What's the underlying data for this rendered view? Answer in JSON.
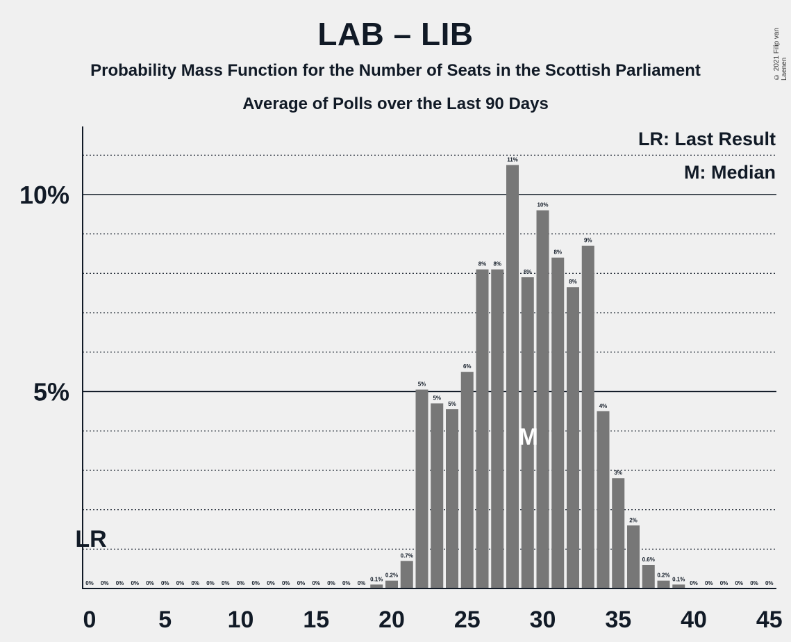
{
  "title": "LAB – LIB",
  "subtitle": "Probability Mass Function for the Number of Seats in the Scottish Parliament",
  "subtitle2": "Average of Polls over the Last 90 Days",
  "copyright": "© 2021 Filip van Laenen",
  "legend": {
    "last_result": "LR: Last Result",
    "median": "M: Median"
  },
  "markers": {
    "last_result_label": "LR",
    "last_result_seat": 0,
    "median_label": "M",
    "median_seat": 29
  },
  "colors": {
    "bar": "#777777",
    "background": "#f0f0f0",
    "text": "#111a26"
  },
  "chart_data": {
    "type": "bar",
    "x": [
      0,
      1,
      2,
      3,
      4,
      5,
      6,
      7,
      8,
      9,
      10,
      11,
      12,
      13,
      14,
      15,
      16,
      17,
      18,
      19,
      20,
      21,
      22,
      23,
      24,
      25,
      26,
      27,
      28,
      29,
      30,
      31,
      32,
      33,
      34,
      35,
      36,
      37,
      38,
      39,
      40,
      41,
      42,
      43,
      44,
      45
    ],
    "values": [
      0,
      0,
      0,
      0,
      0,
      0,
      0,
      0,
      0,
      0,
      0,
      0,
      0,
      0,
      0,
      0,
      0,
      0,
      0,
      0.1,
      0.2,
      0.7,
      5.05,
      4.7,
      4.55,
      5.5,
      8.1,
      8.1,
      10.75,
      7.9,
      9.6,
      8.4,
      7.65,
      8.7,
      4.5,
      2.8,
      1.6,
      0.6,
      0.2,
      0.1,
      0,
      0,
      0,
      0,
      0,
      0
    ],
    "labels": [
      "0%",
      "0%",
      "0%",
      "0%",
      "0%",
      "0%",
      "0%",
      "0%",
      "0%",
      "0%",
      "0%",
      "0%",
      "0%",
      "0%",
      "0%",
      "0%",
      "0%",
      "0%",
      "0%",
      "0.1%",
      "0.2%",
      "0.7%",
      "5%",
      "5%",
      "5%",
      "6%",
      "8%",
      "8%",
      "11%",
      "8%",
      "10%",
      "8%",
      "8%",
      "9%",
      "4%",
      "3%",
      "2%",
      "0.6%",
      "0.2%",
      "0.1%",
      "0%",
      "0%",
      "0%",
      "0%",
      "0%",
      "0%"
    ],
    "x_ticks": [
      0,
      5,
      10,
      15,
      20,
      25,
      30,
      35,
      40,
      45
    ],
    "y_ticks": [
      {
        "value": 5,
        "label": "5%"
      },
      {
        "value": 10,
        "label": "10%"
      }
    ],
    "ylim": [
      0,
      11.7
    ],
    "grid": "dotted minor every 1%, solid major at 5% and 10%",
    "legend_position": "top-right"
  }
}
